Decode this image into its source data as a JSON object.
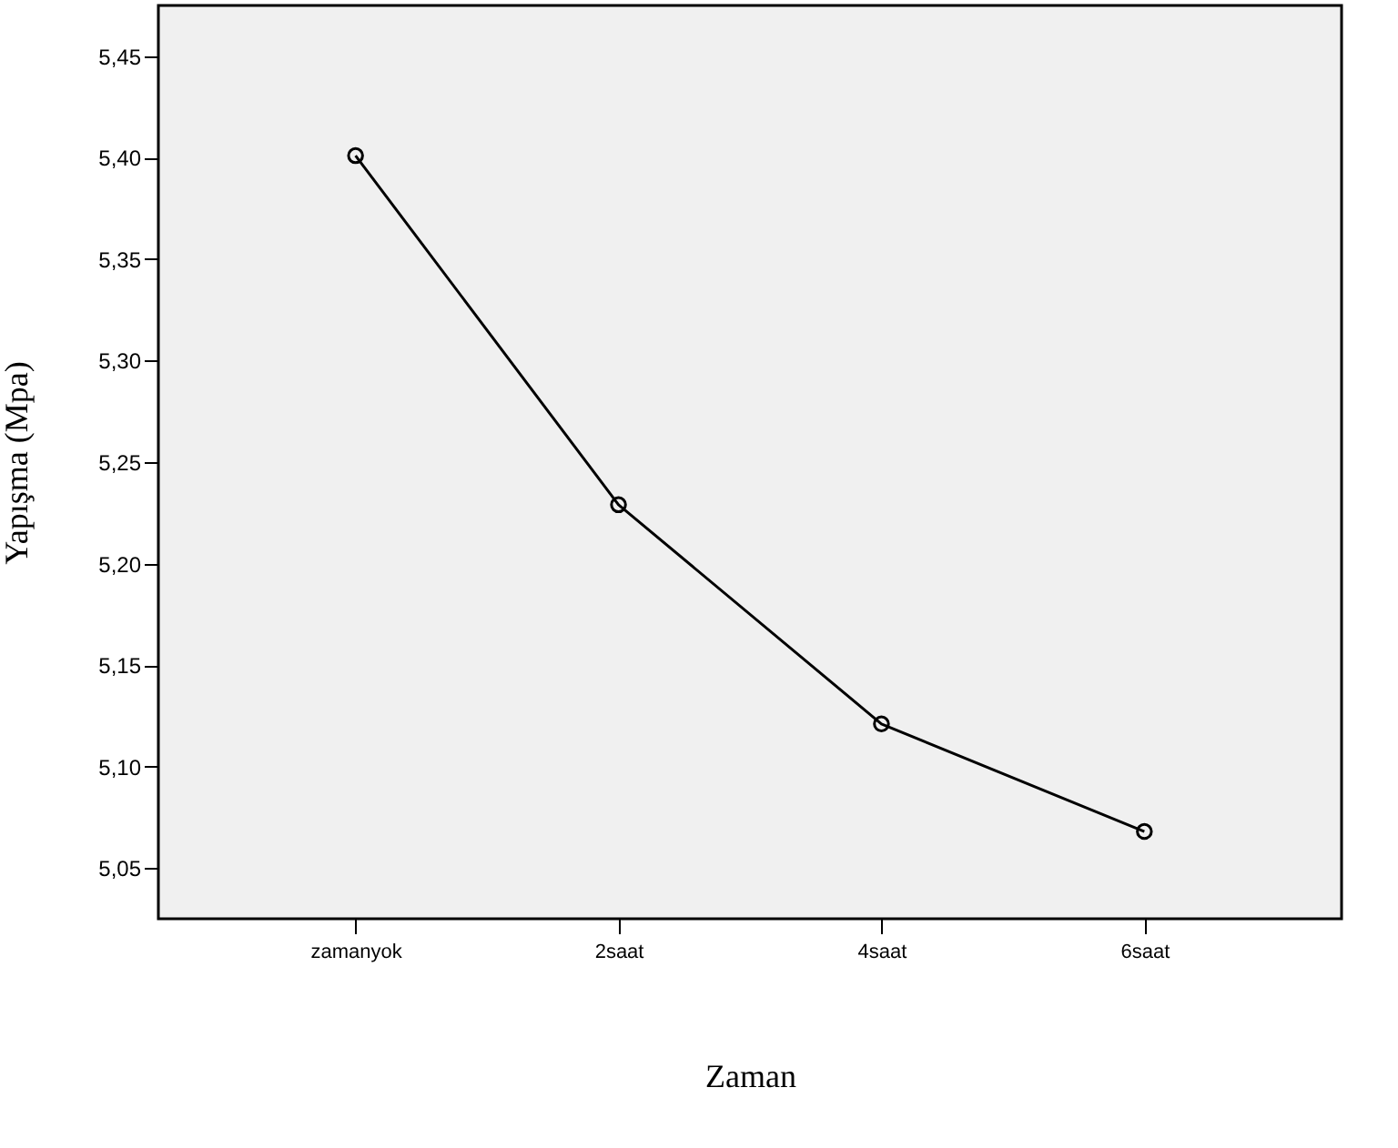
{
  "chart_data": {
    "type": "line",
    "xlabel": "Zaman",
    "ylabel": "Yapışma (Mpa)",
    "categories": [
      "zamanyok",
      "2saat",
      "4saat",
      "6saat"
    ],
    "series": [
      {
        "color": "#000000",
        "values": [
          5.401,
          5.229,
          5.121,
          5.068
        ]
      }
    ],
    "ylim": [
      5.025,
      5.475
    ],
    "yticks": [
      {
        "value": 5.05,
        "label": "5,05"
      },
      {
        "value": 5.1,
        "label": "5,10"
      },
      {
        "value": 5.15,
        "label": "5,15"
      },
      {
        "value": 5.2,
        "label": "5,20"
      },
      {
        "value": 5.25,
        "label": "5,25"
      },
      {
        "value": 5.3,
        "label": "5,30"
      },
      {
        "value": 5.35,
        "label": "5,35"
      },
      {
        "value": 5.4,
        "label": "5,40"
      },
      {
        "value": 5.45,
        "label": "5,45"
      }
    ],
    "marker": "circle",
    "line_style": "solid",
    "grid": false,
    "legend": false
  }
}
